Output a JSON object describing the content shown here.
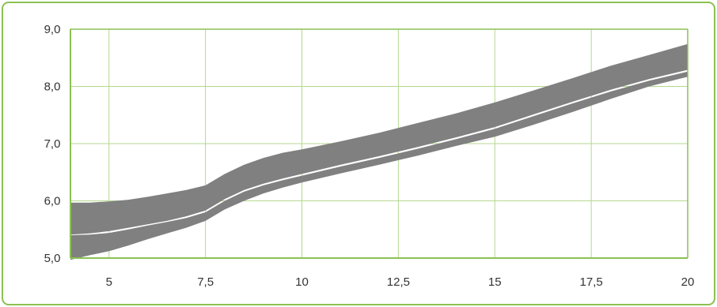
{
  "chart_data": {
    "type": "area",
    "title": "",
    "xlabel": "",
    "ylabel": "",
    "xlim": [
      4,
      20
    ],
    "ylim": [
      5,
      9
    ],
    "grid": true,
    "x_ticks": [
      5,
      7.5,
      10,
      12.5,
      15,
      17.5,
      20
    ],
    "x_tick_labels": [
      "5",
      "7,5",
      "10",
      "12,5",
      "15",
      "17,5",
      "20"
    ],
    "y_ticks": [
      5,
      6,
      7,
      8,
      9
    ],
    "y_tick_labels": [
      "5,0",
      "6,0",
      "7,0",
      "8,0",
      "9,0"
    ],
    "bands": [
      {
        "x": [
          4,
          4.5,
          5,
          5.5,
          6,
          6.5,
          7,
          7.5,
          8,
          8.5,
          9,
          9.5,
          10,
          11,
          12,
          13,
          14,
          15,
          16,
          17,
          18,
          19,
          20
        ],
        "upper": [
          5.97,
          5.97,
          5.99,
          6.02,
          6.07,
          6.13,
          6.19,
          6.27,
          6.47,
          6.63,
          6.75,
          6.84,
          6.9,
          7.04,
          7.19,
          7.36,
          7.53,
          7.72,
          7.93,
          8.14,
          8.36,
          8.55,
          8.74
        ],
        "lower": [
          5.41,
          5.43,
          5.47,
          5.53,
          5.59,
          5.65,
          5.73,
          5.83,
          6.03,
          6.19,
          6.3,
          6.39,
          6.47,
          6.63,
          6.78,
          6.94,
          7.11,
          7.29,
          7.51,
          7.73,
          7.94,
          8.13,
          8.29
        ]
      },
      {
        "x": [
          4,
          4.5,
          5,
          5.5,
          6,
          6.5,
          7,
          7.5,
          8,
          8.5,
          9,
          9.5,
          10,
          11,
          12,
          13,
          14,
          15,
          16,
          17,
          18,
          19,
          20
        ],
        "upper": [
          5.4,
          5.41,
          5.44,
          5.5,
          5.57,
          5.63,
          5.7,
          5.8,
          6.0,
          6.16,
          6.27,
          6.36,
          6.44,
          6.6,
          6.75,
          6.91,
          7.08,
          7.26,
          7.48,
          7.7,
          7.91,
          8.1,
          8.26
        ],
        "lower": [
          4.97,
          5.05,
          5.12,
          5.22,
          5.33,
          5.43,
          5.53,
          5.65,
          5.85,
          6.0,
          6.13,
          6.23,
          6.32,
          6.48,
          6.63,
          6.79,
          6.96,
          7.12,
          7.33,
          7.55,
          7.78,
          8.0,
          8.17
        ]
      }
    ],
    "colors": {
      "band": "#808080",
      "grid": "#b5d88f",
      "axis": "#8cc152",
      "frame": "#8cc152",
      "text": "#333333"
    }
  }
}
